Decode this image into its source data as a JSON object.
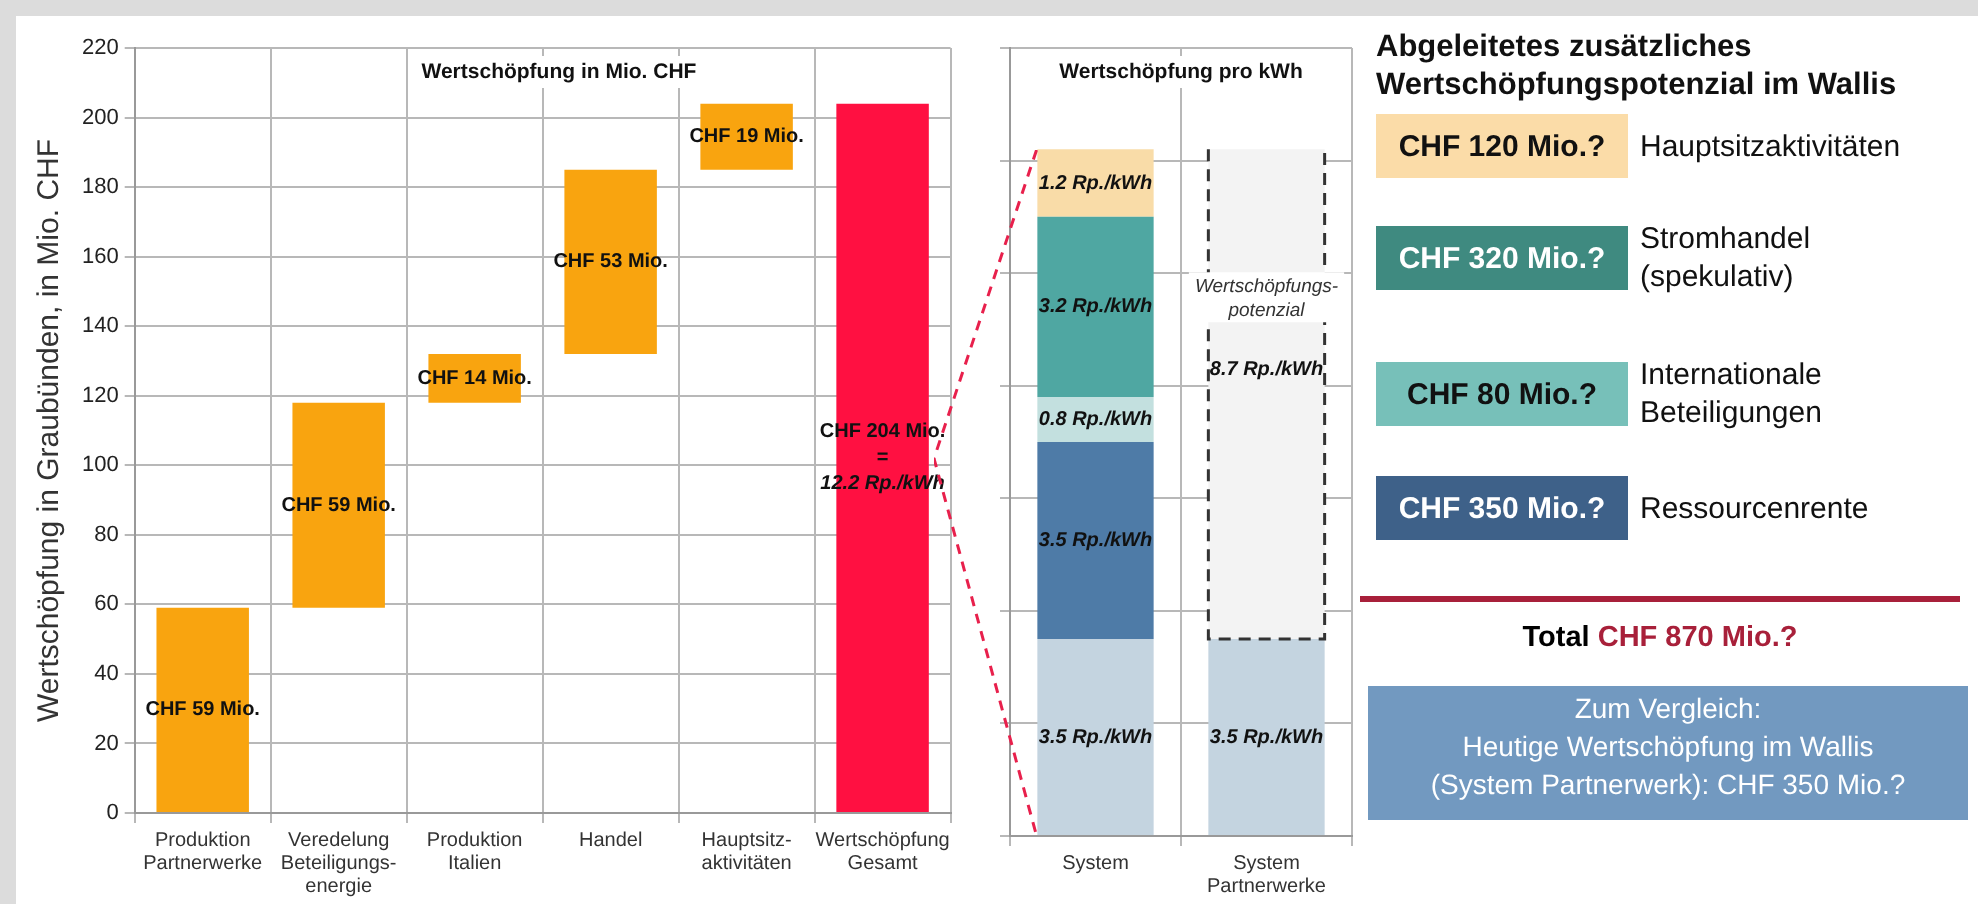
{
  "chart_data": [
    {
      "type": "bar",
      "title": "Wertschöpfung in Mio. CHF",
      "ylabel": "Wertschöpfung in Graubünden, in Mio. CHF",
      "categories": [
        "Produktion Partnerwerke",
        "Veredelung Beteiligungs- energie",
        "Produktion Italien",
        "Handel",
        "Hauptsitz- aktivitäten",
        "Wertschöpfung Gesamt"
      ],
      "values": [
        59,
        59,
        14,
        53,
        19,
        204
      ],
      "base": [
        0,
        59,
        118,
        132,
        185,
        0
      ],
      "colors": [
        "#f9a40f",
        "#f9a40f",
        "#f9a40f",
        "#f9a40f",
        "#f9a40f",
        "#ff1041"
      ],
      "value_labels": [
        "CHF 59 Mio.",
        "CHF 59 Mio.",
        "CHF 14 Mio.",
        "CHF 53 Mio.",
        "CHF 19 Mio.",
        "CHF 204 Mio.\n=\n12.2 Rp./kWh"
      ],
      "ylim": [
        0,
        220
      ],
      "yticks": [
        0,
        20,
        40,
        60,
        80,
        100,
        120,
        140,
        160,
        180,
        200,
        220
      ],
      "grid": true
    },
    {
      "type": "bar",
      "title": "Wertschöpfung pro kWh",
      "stacked": true,
      "tick_labels": "x",
      "grid": true,
      "categories": [
        "System",
        "System Partnerwerke"
      ],
      "series": [
        {
          "color": "#c4d4e0",
          "values": [
            3.5,
            3.5
          ],
          "value_labels": [
            "3.5 Rp./kWh",
            "3.5 Rp./kWh"
          ]
        },
        {
          "color": "#4e7ba7",
          "values": [
            3.5,
            null
          ],
          "value_labels": [
            "3.5 Rp./kWh",
            null
          ]
        },
        {
          "color": "#c3e0df",
          "values": [
            0.8,
            null
          ],
          "value_labels": [
            "0.8 Rp./kWh",
            null
          ]
        },
        {
          "color": "#4fa7a2",
          "values": [
            3.2,
            null
          ],
          "value_labels": [
            "3.2 Rp./kWh",
            null
          ]
        },
        {
          "color": "#f9dca8",
          "values": [
            1.2,
            null
          ],
          "value_labels": [
            "1.2 Rp./kWh",
            null
          ]
        },
        {
          "color": "#f3f3f3",
          "line_style": "dashed",
          "values": [
            null,
            8.7
          ],
          "value_labels": [
            null,
            "8.7 Rp./kWh"
          ]
        }
      ],
      "annotations": [
        "Wertschöpfungs- potenzial"
      ]
    },
    {
      "type": "other",
      "title": "Abgeleitetes zusätzliches Wertschöpfungspotenzial im Wallis",
      "categories": [
        "Hauptsitzaktivitäten",
        "Stromhandel (spekulativ)",
        "Internationale Beteiligungen",
        "Ressourcenrente"
      ],
      "values": [
        120,
        320,
        80,
        350
      ],
      "value_labels": [
        "CHF 120 Mio.?",
        "CHF 320 Mio.?",
        "CHF 80 Mio.?",
        "CHF 350 Mio.?"
      ],
      "colors": [
        "#fbdca8",
        "#3f8a80",
        "#77c0b9",
        "#3e6189"
      ],
      "annotations": [
        "Total CHF 870 Mio.?",
        "Zum Vergleich: Heutige Wertschöpfung im Wallis (System Partnerwerk): CHF 350 Mio.?"
      ]
    }
  ]
}
